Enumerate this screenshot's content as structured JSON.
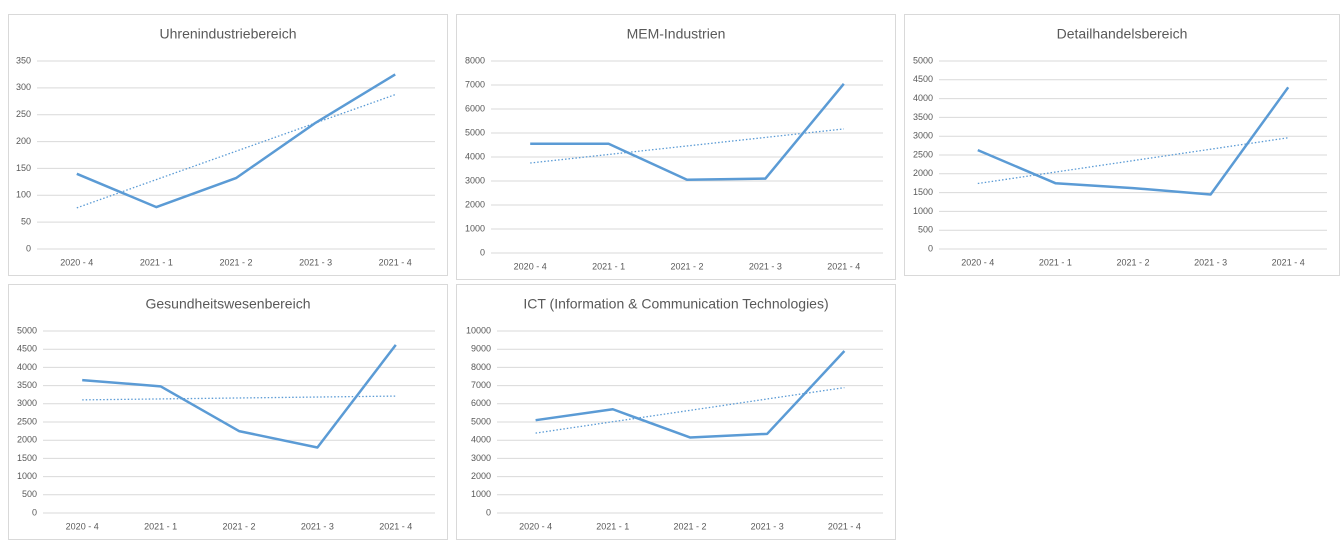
{
  "chart_data": [
    {
      "type": "line",
      "title": "Uhrenindustriebereich",
      "categories": [
        "2020 - 4",
        "2021 - 1",
        "2021 - 2",
        "2021 - 3",
        "2021 - 4"
      ],
      "values": [
        140,
        78,
        132,
        235,
        325
      ],
      "color": "#5b9bd5",
      "ylim": [
        0,
        350
      ],
      "yticks": [
        0,
        50,
        100,
        150,
        200,
        250,
        300,
        350
      ],
      "grid": true,
      "trendline": "linear"
    },
    {
      "type": "line",
      "title": "MEM-Industrien",
      "categories": [
        "2020 - 4",
        "2021 - 1",
        "2021 - 2",
        "2021 - 3",
        "2021 - 4"
      ],
      "values": [
        4550,
        4550,
        3050,
        3100,
        7050
      ],
      "color": "#5b9bd5",
      "ylim": [
        0,
        8000
      ],
      "yticks": [
        0,
        1000,
        2000,
        3000,
        4000,
        5000,
        6000,
        7000,
        8000
      ],
      "grid": true,
      "trendline": "linear"
    },
    {
      "type": "line",
      "title": "Detailhandelsbereich",
      "categories": [
        "2020 - 4",
        "2021 - 1",
        "2021 - 2",
        "2021 - 3",
        "2021 - 4"
      ],
      "values": [
        2630,
        1750,
        1620,
        1450,
        4300
      ],
      "color": "#5b9bd5",
      "ylim": [
        0,
        5000
      ],
      "yticks": [
        0,
        500,
        1000,
        1500,
        2000,
        2500,
        3000,
        3500,
        4000,
        4500,
        5000
      ],
      "grid": true,
      "trendline": "linear"
    },
    {
      "type": "line",
      "title": "Gesundheitswesenbereich",
      "categories": [
        "2020 - 4",
        "2021 - 1",
        "2021 - 2",
        "2021 - 3",
        "2021 - 4"
      ],
      "values": [
        3650,
        3480,
        2250,
        1800,
        4620
      ],
      "color": "#5b9bd5",
      "ylim": [
        0,
        5000
      ],
      "yticks": [
        0,
        500,
        1000,
        1500,
        2000,
        2500,
        3000,
        3500,
        4000,
        4500,
        5000
      ],
      "grid": true,
      "trendline": "linear"
    },
    {
      "type": "line",
      "title": "ICT (Information & Communication Technologies)",
      "categories": [
        "2020 - 4",
        "2021 - 1",
        "2021 - 2",
        "2021 - 3",
        "2021 - 4"
      ],
      "values": [
        5100,
        5700,
        4150,
        4350,
        8900
      ],
      "color": "#5b9bd5",
      "ylim": [
        0,
        10000
      ],
      "yticks": [
        0,
        1000,
        2000,
        3000,
        4000,
        5000,
        6000,
        7000,
        8000,
        9000,
        10000
      ],
      "grid": true,
      "trendline": "linear"
    }
  ]
}
